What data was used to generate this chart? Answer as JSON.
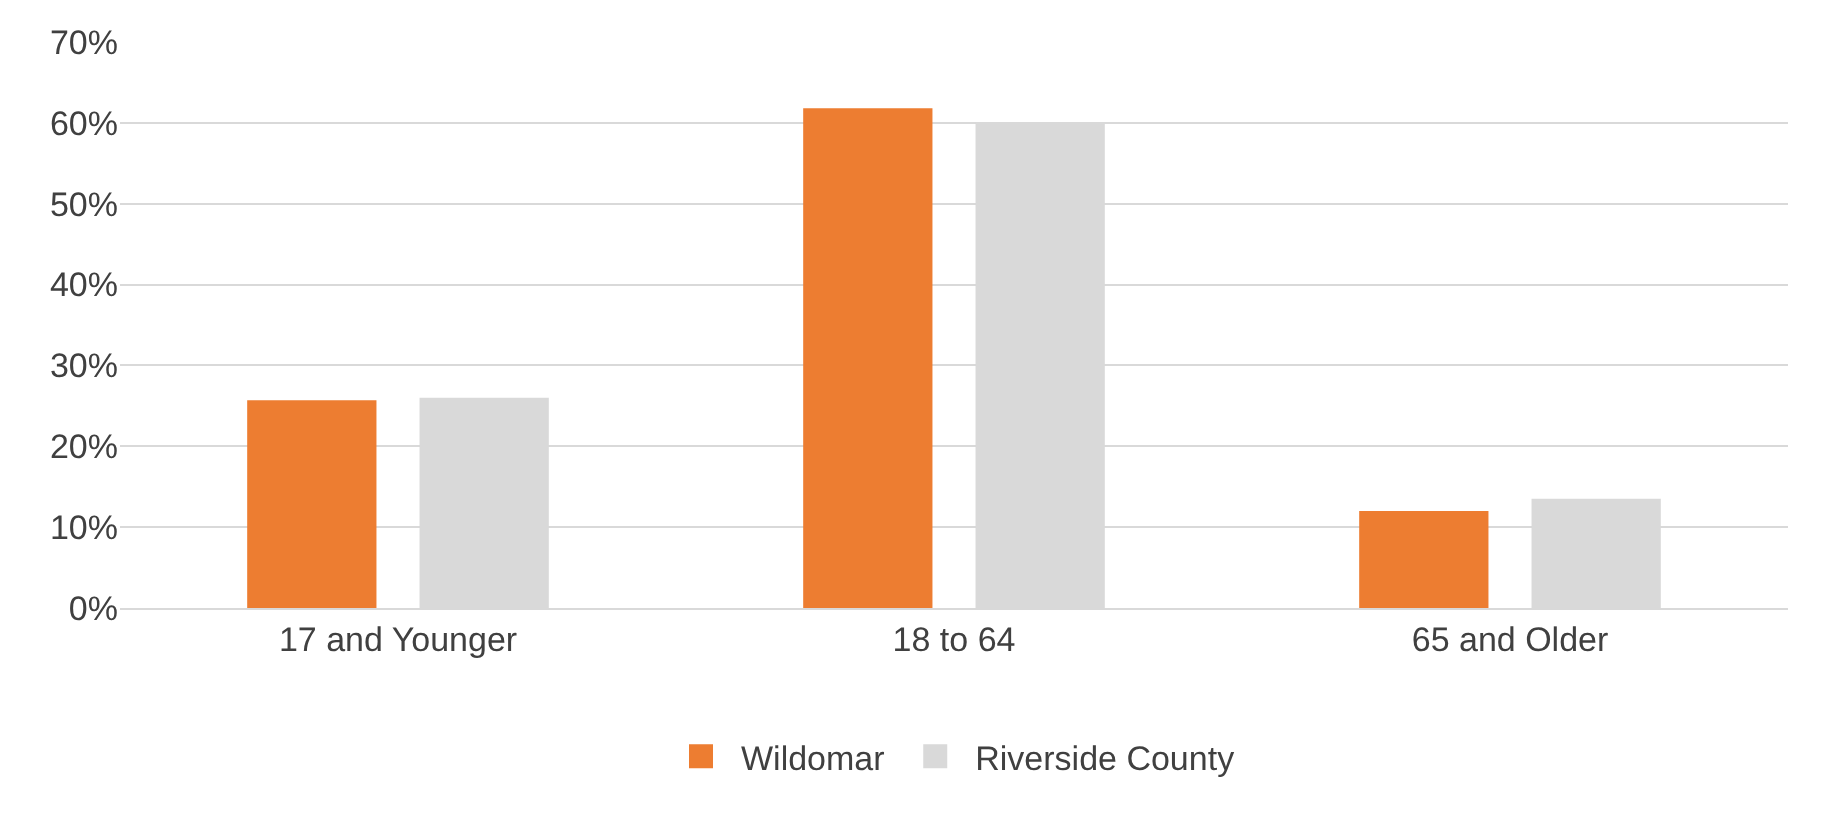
{
  "chart_data": {
    "type": "bar",
    "categories": [
      "17 and Younger",
      "18 to 64",
      "65 and Older"
    ],
    "series": [
      {
        "name": "Wildomar",
        "color": "#ed7d31",
        "values": [
          25.7,
          61.8,
          12.0
        ]
      },
      {
        "name": "Riverside County",
        "color": "#d9d9d9",
        "values": [
          26.0,
          60.1,
          13.5
        ]
      }
    ],
    "ylim": [
      0,
      70
    ],
    "yticks": [
      {
        "value": 0,
        "label": "0%"
      },
      {
        "value": 10,
        "label": "10%"
      },
      {
        "value": 20,
        "label": "20%"
      },
      {
        "value": 30,
        "label": "30%"
      },
      {
        "value": 40,
        "label": "40%"
      },
      {
        "value": 50,
        "label": "50%"
      },
      {
        "value": 60,
        "label": "60%"
      },
      {
        "value": 70,
        "label": "70%"
      }
    ],
    "grid": "y",
    "legend": "bottom"
  }
}
